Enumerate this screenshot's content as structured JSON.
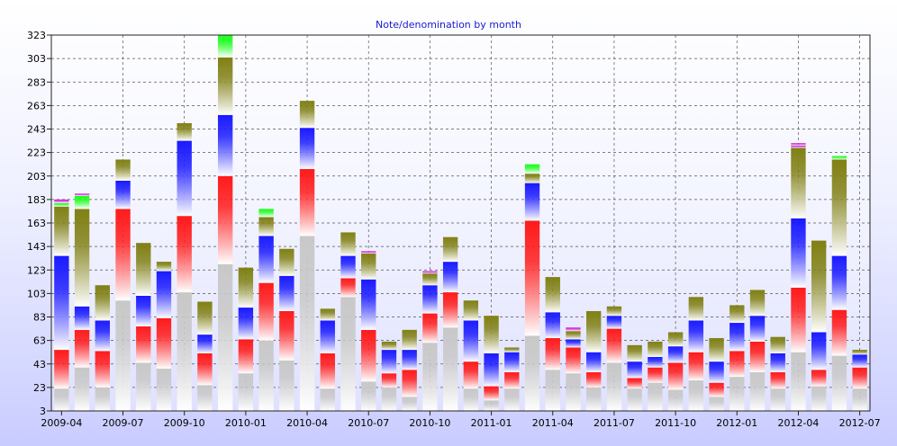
{
  "chart_data": {
    "type": "bar",
    "stacked": true,
    "title": "Note/denomination by month",
    "xlabel": "",
    "ylabel": "",
    "ylim": [
      3,
      323
    ],
    "yticks": [
      3,
      23,
      43,
      63,
      83,
      103,
      123,
      143,
      163,
      183,
      203,
      223,
      243,
      263,
      283,
      303,
      323
    ],
    "grid": true,
    "legend": "none",
    "colors": {
      "gray": "#c8c8c8",
      "red": "#ff1a1a",
      "blue": "#1a1aff",
      "olive": "#808014",
      "green": "#1aff1a",
      "magenta": "#d21ad2"
    },
    "tick_labels": [
      "2009-04",
      "2009-07",
      "2009-10",
      "2010-01",
      "2010-04",
      "2010-07",
      "2010-10",
      "2011-01",
      "2011-04",
      "2011-07",
      "2011-10",
      "2012-01",
      "2012-04",
      "2012-07"
    ],
    "categories": [
      "2009-04",
      "2009-05",
      "2009-06",
      "2009-07",
      "2009-08",
      "2009-09",
      "2009-10",
      "2009-11",
      "2009-12",
      "2010-01",
      "2010-02",
      "2010-03",
      "2010-04",
      "2010-05",
      "2010-06",
      "2010-07",
      "2010-08",
      "2010-09",
      "2010-10",
      "2010-11",
      "2010-12",
      "2011-01",
      "2011-02",
      "2011-03",
      "2011-04",
      "2011-05",
      "2011-06",
      "2011-07",
      "2011-08",
      "2011-09",
      "2011-10",
      "2011-11",
      "2011-12",
      "2012-01",
      "2012-02",
      "2012-03",
      "2012-04",
      "2012-05",
      "2012-06",
      "2012-07"
    ],
    "stacks": [
      [
        [
          22,
          "gray"
        ],
        [
          55,
          "red"
        ],
        [
          135,
          "blue"
        ],
        [
          177,
          "olive"
        ],
        [
          180,
          "green"
        ],
        [
          183,
          "magenta"
        ]
      ],
      [
        [
          40,
          "gray"
        ],
        [
          72,
          "red"
        ],
        [
          92,
          "blue"
        ],
        [
          175,
          "olive"
        ],
        [
          186,
          "green"
        ],
        [
          188,
          "magenta"
        ]
      ],
      [
        [
          23,
          "gray"
        ],
        [
          54,
          "red"
        ],
        [
          80,
          "blue"
        ],
        [
          110,
          "olive"
        ]
      ],
      [
        [
          97,
          "gray"
        ],
        [
          175,
          "red"
        ],
        [
          199,
          "blue"
        ],
        [
          217,
          "olive"
        ]
      ],
      [
        [
          44,
          "gray"
        ],
        [
          75,
          "red"
        ],
        [
          101,
          "blue"
        ],
        [
          146,
          "olive"
        ]
      ],
      [
        [
          39,
          "gray"
        ],
        [
          82,
          "red"
        ],
        [
          122,
          "blue"
        ],
        [
          130,
          "olive"
        ]
      ],
      [
        [
          104,
          "gray"
        ],
        [
          169,
          "red"
        ],
        [
          233,
          "blue"
        ],
        [
          248,
          "olive"
        ]
      ],
      [
        [
          25,
          "gray"
        ],
        [
          52,
          "red"
        ],
        [
          68,
          "blue"
        ],
        [
          96,
          "olive"
        ]
      ],
      [
        [
          128,
          "gray"
        ],
        [
          203,
          "red"
        ],
        [
          255,
          "blue"
        ],
        [
          304,
          "olive"
        ],
        [
          325,
          "green"
        ]
      ],
      [
        [
          35,
          "gray"
        ],
        [
          64,
          "red"
        ],
        [
          91,
          "blue"
        ],
        [
          125,
          "olive"
        ]
      ],
      [
        [
          63,
          "gray"
        ],
        [
          112,
          "red"
        ],
        [
          152,
          "blue"
        ],
        [
          168,
          "olive"
        ],
        [
          175,
          "green"
        ]
      ],
      [
        [
          46,
          "gray"
        ],
        [
          88,
          "red"
        ],
        [
          118,
          "blue"
        ],
        [
          141,
          "olive"
        ]
      ],
      [
        [
          152,
          "gray"
        ],
        [
          209,
          "red"
        ],
        [
          244,
          "blue"
        ],
        [
          267,
          "olive"
        ]
      ],
      [
        [
          22,
          "gray"
        ],
        [
          52,
          "red"
        ],
        [
          80,
          "blue"
        ],
        [
          90,
          "olive"
        ]
      ],
      [
        [
          100,
          "gray"
        ],
        [
          116,
          "red"
        ],
        [
          135,
          "blue"
        ],
        [
          155,
          "olive"
        ]
      ],
      [
        [
          28,
          "gray"
        ],
        [
          72,
          "red"
        ],
        [
          115,
          "blue"
        ],
        [
          137,
          "olive"
        ],
        [
          139,
          "magenta"
        ]
      ],
      [
        [
          23,
          "gray"
        ],
        [
          35,
          "red"
        ],
        [
          55,
          "blue"
        ],
        [
          62,
          "olive"
        ]
      ],
      [
        [
          15,
          "gray"
        ],
        [
          38,
          "red"
        ],
        [
          55,
          "blue"
        ],
        [
          72,
          "olive"
        ]
      ],
      [
        [
          61,
          "gray"
        ],
        [
          86,
          "red"
        ],
        [
          110,
          "blue"
        ],
        [
          120,
          "olive"
        ],
        [
          122,
          "magenta"
        ]
      ],
      [
        [
          74,
          "gray"
        ],
        [
          104,
          "red"
        ],
        [
          130,
          "blue"
        ],
        [
          151,
          "olive"
        ]
      ],
      [
        [
          22,
          "gray"
        ],
        [
          45,
          "red"
        ],
        [
          80,
          "blue"
        ],
        [
          97,
          "olive"
        ]
      ],
      [
        [
          12,
          "gray"
        ],
        [
          24,
          "red"
        ],
        [
          52,
          "blue"
        ],
        [
          84,
          "olive"
        ]
      ],
      [
        [
          22,
          "gray"
        ],
        [
          36,
          "red"
        ],
        [
          53,
          "blue"
        ],
        [
          57,
          "olive"
        ]
      ],
      [
        [
          67,
          "gray"
        ],
        [
          165,
          "red"
        ],
        [
          197,
          "blue"
        ],
        [
          205,
          "olive"
        ],
        [
          213,
          "green"
        ]
      ],
      [
        [
          38,
          "gray"
        ],
        [
          65,
          "red"
        ],
        [
          87,
          "blue"
        ],
        [
          117,
          "olive"
        ]
      ],
      [
        [
          35,
          "gray"
        ],
        [
          57,
          "red"
        ],
        [
          64,
          "blue"
        ],
        [
          71,
          "olive"
        ],
        [
          74,
          "magenta"
        ]
      ],
      [
        [
          23,
          "gray"
        ],
        [
          36,
          "red"
        ],
        [
          53,
          "blue"
        ],
        [
          88,
          "olive"
        ]
      ],
      [
        [
          44,
          "gray"
        ],
        [
          73,
          "red"
        ],
        [
          84,
          "blue"
        ],
        [
          92,
          "olive"
        ]
      ],
      [
        [
          22,
          "gray"
        ],
        [
          31,
          "red"
        ],
        [
          45,
          "blue"
        ],
        [
          59,
          "olive"
        ]
      ],
      [
        [
          27,
          "gray"
        ],
        [
          40,
          "red"
        ],
        [
          49,
          "blue"
        ],
        [
          62,
          "olive"
        ]
      ],
      [
        [
          21,
          "gray"
        ],
        [
          44,
          "red"
        ],
        [
          58,
          "blue"
        ],
        [
          70,
          "olive"
        ]
      ],
      [
        [
          29,
          "gray"
        ],
        [
          53,
          "red"
        ],
        [
          80,
          "blue"
        ],
        [
          100,
          "olive"
        ]
      ],
      [
        [
          15,
          "gray"
        ],
        [
          27,
          "red"
        ],
        [
          45,
          "blue"
        ],
        [
          65,
          "olive"
        ]
      ],
      [
        [
          32,
          "gray"
        ],
        [
          54,
          "red"
        ],
        [
          78,
          "blue"
        ],
        [
          93,
          "olive"
        ]
      ],
      [
        [
          36,
          "gray"
        ],
        [
          62,
          "red"
        ],
        [
          84,
          "blue"
        ],
        [
          106,
          "olive"
        ]
      ],
      [
        [
          22,
          "gray"
        ],
        [
          36,
          "red"
        ],
        [
          52,
          "blue"
        ],
        [
          66,
          "olive"
        ]
      ],
      [
        [
          53,
          "gray"
        ],
        [
          108,
          "red"
        ],
        [
          167,
          "blue"
        ],
        [
          227,
          "olive"
        ],
        [
          229,
          "magenta"
        ],
        [
          231,
          "magenta"
        ]
      ],
      [
        [
          24,
          "gray"
        ],
        [
          38,
          "red"
        ],
        [
          70,
          "blue"
        ],
        [
          148,
          "olive"
        ]
      ],
      [
        [
          50,
          "gray"
        ],
        [
          89,
          "red"
        ],
        [
          135,
          "blue"
        ],
        [
          217,
          "olive"
        ],
        [
          220,
          "green"
        ]
      ],
      [
        [
          22,
          "gray"
        ],
        [
          40,
          "red"
        ],
        [
          51,
          "blue"
        ],
        [
          55,
          "olive"
        ]
      ]
    ]
  }
}
